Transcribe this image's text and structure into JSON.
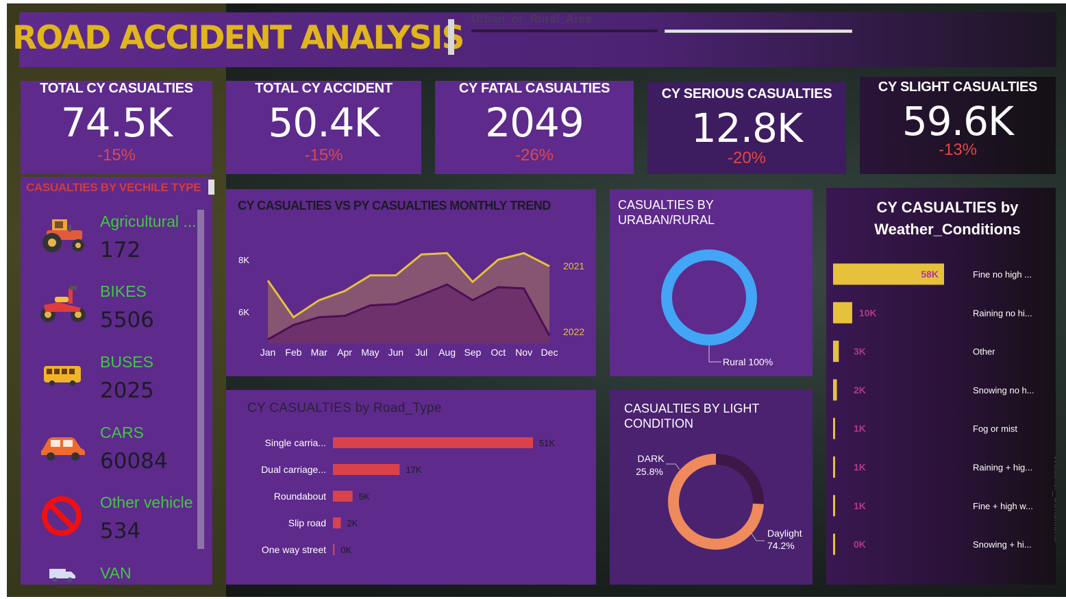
{
  "header": {
    "title": "ROAD ACCIDENT ANALYSIS",
    "slicer_label": "Urban_or_Rural_Area"
  },
  "kpis": [
    {
      "title": "TOTAL CY CASUALTIES",
      "value": "74.5K",
      "change": "-15%"
    },
    {
      "title": "TOTAL CY ACCIDENT",
      "value": "50.4K",
      "change": "-15%"
    },
    {
      "title": "CY FATAL CASUALTIES",
      "value": "2049",
      "change": "-26%"
    },
    {
      "title": "CY SERIOUS CASUALTIES",
      "value": "12.8K",
      "change": "-20%"
    },
    {
      "title": "CY SLIGHT CASUALTIES",
      "value": "59.6K",
      "change": "-13%"
    }
  ],
  "vehicle_type": {
    "title": "CASUALTIES BY VECHILE TYPE",
    "items": [
      {
        "name": "Agricultural ...",
        "value": "172",
        "icon": "tractor-icon"
      },
      {
        "name": "BIKES",
        "value": "5506",
        "icon": "motorbike-icon"
      },
      {
        "name": "BUSES",
        "value": "2025",
        "icon": "bus-icon"
      },
      {
        "name": "CARS",
        "value": "60084",
        "icon": "car-icon"
      },
      {
        "name": "Other vehicle",
        "value": "534",
        "icon": "prohibited-icon"
      },
      {
        "name": "VAN",
        "value": "",
        "icon": "van-icon"
      }
    ]
  },
  "colors": {
    "panel": "#5e2a8c",
    "accent_gold": "#e0b51e",
    "green_label": "#3fc93f",
    "negative": "#e04848",
    "bar_red": "#d9424a",
    "donut_blue": "#42a5f5",
    "donut_orange": "#ee8a5c",
    "donut_dark": "#3d1846",
    "series_2021": "#e6c13c",
    "series_2022": "#4a0f55"
  },
  "chart_data": [
    {
      "type": "area",
      "title": "CY CASUALTIES VS PY CASUALTIES MONTHLY TREND",
      "categories": [
        "Jan",
        "Feb",
        "Mar",
        "Apr",
        "May",
        "Jun",
        "Jul",
        "Aug",
        "Sep",
        "Oct",
        "Nov",
        "Dec"
      ],
      "y_ticks": [
        "8K",
        "6K"
      ],
      "y_tick_values": [
        8000,
        6000
      ],
      "ylim": [
        4800,
        8600
      ],
      "grid": false,
      "series": [
        {
          "name": "2021",
          "values": [
            7200,
            5800,
            6450,
            6800,
            7400,
            7400,
            8200,
            8250,
            7150,
            8000,
            8250,
            7750
          ]
        },
        {
          "name": "2022",
          "values": [
            4950,
            5500,
            5800,
            5850,
            6250,
            6300,
            6650,
            7050,
            6450,
            6950,
            6900,
            5100
          ]
        }
      ]
    },
    {
      "type": "pie",
      "title": "CASUALTIES BY URABAN/RURAL",
      "slices": [
        {
          "name": "Rural",
          "value": 100,
          "label": "Rural 100%"
        }
      ]
    },
    {
      "type": "bar",
      "orientation": "horizontal",
      "title": "CY CASUALTIES by Road_Type",
      "categories": [
        "Single carria...",
        "Dual carriage...",
        "Roundabout",
        "Slip road",
        "One way street"
      ],
      "values": [
        51000,
        17000,
        5000,
        2000,
        400
      ],
      "data_labels": [
        "51K",
        "17K",
        "5K",
        "2K",
        "0K"
      ],
      "xlim": [
        0,
        51000
      ]
    },
    {
      "type": "pie",
      "title": "CASUALTIES BY LIGHT CONDITION",
      "slices": [
        {
          "name": "DARK",
          "value": 25.8,
          "label": "25.8%"
        },
        {
          "name": "Daylight",
          "value": 74.2,
          "label": "74.2%"
        }
      ]
    },
    {
      "type": "bar",
      "orientation": "horizontal",
      "title": "CY CASUALTIES by Weather_Conditions",
      "axis_label": "Weather_Conditions",
      "categories": [
        "Fine no high ...",
        "Raining no hi...",
        "Other",
        "Snowing no h...",
        "Fog or mist",
        "Raining + hig...",
        "Fine + high w...",
        "Snowing + hi..."
      ],
      "values": [
        58000,
        10000,
        3000,
        2000,
        1000,
        1000,
        1000,
        400
      ],
      "data_labels": [
        "58K",
        "10K",
        "3K",
        "2K",
        "1K",
        "1K",
        "1K",
        "0K"
      ],
      "xlim": [
        0,
        58000
      ]
    }
  ]
}
